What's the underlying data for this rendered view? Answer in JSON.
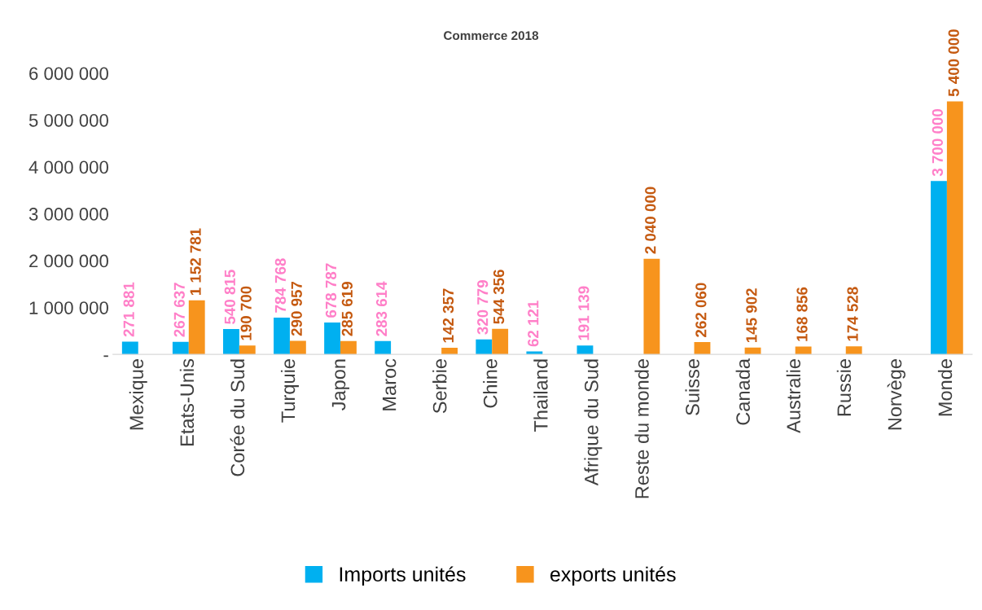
{
  "chart_data": {
    "type": "bar",
    "title": "Commerce 2018",
    "categories": [
      "Mexique",
      "Etats-Unis",
      "Corée du Sud",
      "Turquie",
      "Japon",
      "Maroc",
      "Serbie",
      "Chine",
      "Thailand",
      "Afrique du Sud",
      "Reste du monde",
      "Suisse",
      "Canada",
      "Australie",
      "Russie",
      "Norvège",
      "Monde"
    ],
    "series": [
      {
        "name": "Imports unités",
        "color": "#00b0f0",
        "values": [
          271881,
          267637,
          540815,
          784768,
          678787,
          283614,
          null,
          320779,
          62121,
          191139,
          null,
          null,
          null,
          null,
          null,
          null,
          3700000
        ],
        "value_labels": [
          "271 881",
          "267 637",
          "540 815",
          "784 768",
          "678 787",
          "283 614",
          null,
          "320 779",
          "62 121",
          "191 139",
          null,
          null,
          null,
          null,
          null,
          null,
          "3 700 000"
        ]
      },
      {
        "name": "exports unités",
        "color": "#f7941d",
        "values": [
          null,
          1152781,
          190700,
          290957,
          285619,
          null,
          142357,
          544356,
          null,
          null,
          2040000,
          262060,
          145902,
          168856,
          174528,
          null,
          5400000
        ],
        "value_labels": [
          null,
          "1 152 781",
          "190 700",
          "290 957",
          "285 619",
          null,
          "142 357",
          "544 356",
          null,
          null,
          "2 040 000",
          "262 060",
          "145 902",
          "168 856",
          "174 528",
          null,
          "5 400 000"
        ]
      }
    ],
    "ylim": [
      0,
      6000000
    ],
    "yticks": [
      {
        "value": 0,
        "label": "-"
      },
      {
        "value": 1000000,
        "label": "1 000 000"
      },
      {
        "value": 2000000,
        "label": "2 000 000"
      },
      {
        "value": 3000000,
        "label": "3 000 000"
      },
      {
        "value": 4000000,
        "label": "4 000 000"
      },
      {
        "value": 5000000,
        "label": "5 000 000"
      },
      {
        "value": 6000000,
        "label": "6 000 000"
      }
    ],
    "grid": false,
    "legend": "bottom"
  }
}
